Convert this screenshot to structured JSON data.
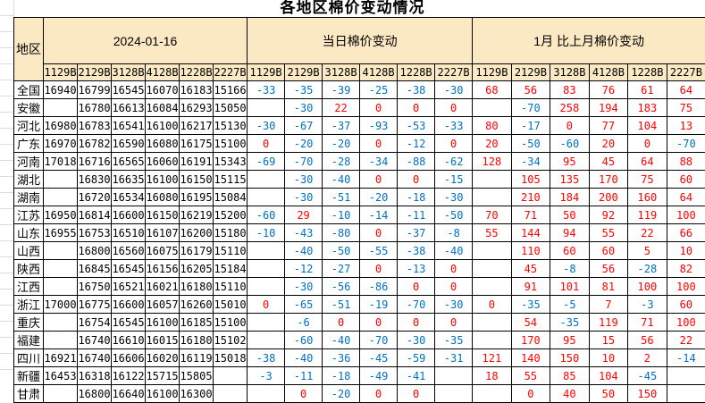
{
  "title": "各地区棉价变动情况",
  "colors": {
    "header_bg": "#FBE9C3",
    "negative_text": "#0070C0",
    "positive_text": "#FF0000",
    "border": "#000000",
    "sheet_gridline": "#DCDCDC"
  },
  "header": {
    "region_label": "地区",
    "groups": [
      {
        "label": "2024-01-16"
      },
      {
        "label": "当日棉价变动"
      },
      {
        "label": "1月 比上月棉价变动"
      }
    ],
    "grade_codes": [
      "1129B",
      "2129B",
      "3128B",
      "4128B",
      "1228B",
      "2227B"
    ]
  },
  "rows": [
    {
      "region": "全国",
      "prices": [
        "16940",
        "16799",
        "16545",
        "16070",
        "16183",
        "15166"
      ],
      "daily": [
        "-33",
        "-35",
        "-39",
        "-25",
        "-38",
        "-30"
      ],
      "monthly": [
        "68",
        "56",
        "83",
        "76",
        "61",
        "64"
      ]
    },
    {
      "region": "安徽",
      "prices": [
        "",
        "16780",
        "16613",
        "16084",
        "16293",
        "15050"
      ],
      "daily": [
        "",
        "-30",
        "22",
        "0",
        "0",
        "0"
      ],
      "monthly": [
        "",
        "-70",
        "258",
        "194",
        "183",
        "75"
      ]
    },
    {
      "region": "河北",
      "prices": [
        "16980",
        "16783",
        "16541",
        "16100",
        "16217",
        "15130"
      ],
      "daily": [
        "-30",
        "-67",
        "-37",
        "-93",
        "-53",
        "-33"
      ],
      "monthly": [
        "80",
        "-17",
        "0",
        "77",
        "104",
        "13"
      ]
    },
    {
      "region": "广东",
      "prices": [
        "16970",
        "16782",
        "16590",
        "16080",
        "16175",
        "15100"
      ],
      "daily": [
        "0",
        "-20",
        "-20",
        "0",
        "-12",
        "0"
      ],
      "monthly": [
        "20",
        "-50",
        "-60",
        "20",
        "0",
        "-70"
      ]
    },
    {
      "region": "河南",
      "prices": [
        "17018",
        "16716",
        "16565",
        "16060",
        "16191",
        "15343"
      ],
      "daily": [
        "-69",
        "-70",
        "-28",
        "-34",
        "-88",
        "-62"
      ],
      "monthly": [
        "128",
        "-34",
        "95",
        "45",
        "64",
        "88"
      ]
    },
    {
      "region": "湖北",
      "prices": [
        "",
        "16830",
        "16635",
        "16100",
        "16150",
        "15115"
      ],
      "daily": [
        "",
        "-30",
        "-40",
        "0",
        "0",
        "-15"
      ],
      "monthly": [
        "",
        "105",
        "135",
        "170",
        "75",
        "60"
      ]
    },
    {
      "region": "湖南",
      "prices": [
        "",
        "16720",
        "16534",
        "16080",
        "16195",
        "15084"
      ],
      "daily": [
        "",
        "-30",
        "-51",
        "-20",
        "-18",
        "-30"
      ],
      "monthly": [
        "",
        "210",
        "184",
        "200",
        "160",
        "64"
      ]
    },
    {
      "region": "江苏",
      "prices": [
        "16950",
        "16814",
        "16600",
        "16150",
        "16219",
        "15200"
      ],
      "daily": [
        "-60",
        "29",
        "-10",
        "-14",
        "-11",
        "-50"
      ],
      "monthly": [
        "70",
        "71",
        "50",
        "92",
        "119",
        "100"
      ]
    },
    {
      "region": "山东",
      "prices": [
        "16955",
        "16753",
        "16510",
        "16107",
        "16200",
        "15180"
      ],
      "daily": [
        "-10",
        "-43",
        "-80",
        "0",
        "-37",
        "-8"
      ],
      "monthly": [
        "55",
        "144",
        "94",
        "55",
        "22",
        "66"
      ]
    },
    {
      "region": "山西",
      "prices": [
        "",
        "16800",
        "16560",
        "16075",
        "16179",
        "15110"
      ],
      "daily": [
        "",
        "-40",
        "-50",
        "-55",
        "-38",
        "-40"
      ],
      "monthly": [
        "",
        "110",
        "60",
        "60",
        "5",
        "10"
      ]
    },
    {
      "region": "陕西",
      "prices": [
        "",
        "16845",
        "16545",
        "16156",
        "16205",
        "15184"
      ],
      "daily": [
        "",
        "-12",
        "-27",
        "0",
        "-13",
        "0"
      ],
      "monthly": [
        "",
        "45",
        "-8",
        "56",
        "-28",
        "82"
      ]
    },
    {
      "region": "江西",
      "prices": [
        "",
        "16750",
        "16521",
        "16021",
        "16180",
        "15110"
      ],
      "daily": [
        "",
        "-30",
        "-56",
        "-86",
        "0",
        "0"
      ],
      "monthly": [
        "",
        "91",
        "101",
        "81",
        "100",
        "100"
      ]
    },
    {
      "region": "浙江",
      "prices": [
        "17000",
        "16775",
        "16600",
        "16057",
        "16260",
        "15010"
      ],
      "daily": [
        "0",
        "-65",
        "-51",
        "-19",
        "-70",
        "-30"
      ],
      "monthly": [
        "0",
        "-35",
        "-5",
        "7",
        "-3",
        "60"
      ]
    },
    {
      "region": "重庆",
      "prices": [
        "",
        "16754",
        "16545",
        "16100",
        "16185",
        "15100"
      ],
      "daily": [
        "",
        "-6",
        "0",
        "0",
        "0",
        "0"
      ],
      "monthly": [
        "",
        "54",
        "-35",
        "119",
        "71",
        "100"
      ]
    },
    {
      "region": "福建",
      "prices": [
        "",
        "16740",
        "16610",
        "16015",
        "16180",
        "15102"
      ],
      "daily": [
        "",
        "-60",
        "-40",
        "-70",
        "-30",
        "-35"
      ],
      "monthly": [
        "",
        "170",
        "95",
        "15",
        "56",
        "22"
      ]
    },
    {
      "region": "四川",
      "prices": [
        "16921",
        "16740",
        "16606",
        "16020",
        "16119",
        "15018"
      ],
      "daily": [
        "-38",
        "-40",
        "-36",
        "-45",
        "-59",
        "-31"
      ],
      "monthly": [
        "121",
        "140",
        "150",
        "10",
        "2",
        "-14"
      ]
    },
    {
      "region": "新疆",
      "prices": [
        "16453",
        "16318",
        "16122",
        "15715",
        "15805",
        ""
      ],
      "daily": [
        "-3",
        "-11",
        "-18",
        "-49",
        "-41",
        ""
      ],
      "monthly": [
        "18",
        "55",
        "85",
        "104",
        "-45",
        ""
      ]
    },
    {
      "region": "甘肃",
      "prices": [
        "",
        "16800",
        "16640",
        "16100",
        "16300",
        ""
      ],
      "daily": [
        "",
        "0",
        "-20",
        "0",
        "0",
        ""
      ],
      "monthly": [
        "",
        "0",
        "40",
        "50",
        "150",
        ""
      ]
    }
  ]
}
